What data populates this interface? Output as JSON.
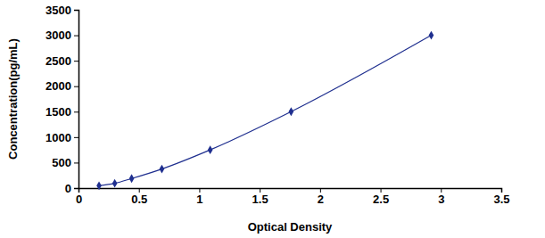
{
  "chart_data": {
    "type": "line",
    "x_label": "Optical Density",
    "y_label": "Concentration(pg/mL)",
    "x": [
      0.17,
      0.3,
      0.44,
      0.69,
      1.09,
      1.76,
      2.92
    ],
    "values": [
      47,
      94,
      188,
      375,
      750,
      1500,
      3000
    ],
    "color": "#1f2f8f",
    "marker": "diamond",
    "xlim": [
      0,
      3.5
    ],
    "xticks": [
      0,
      0.5,
      1,
      1.5,
      2,
      2.5,
      3,
      3.5
    ],
    "ylim": [
      0,
      3500
    ],
    "yticks": [
      0,
      500,
      1000,
      1500,
      2000,
      2500,
      3000,
      3500
    ],
    "grid": false
  }
}
